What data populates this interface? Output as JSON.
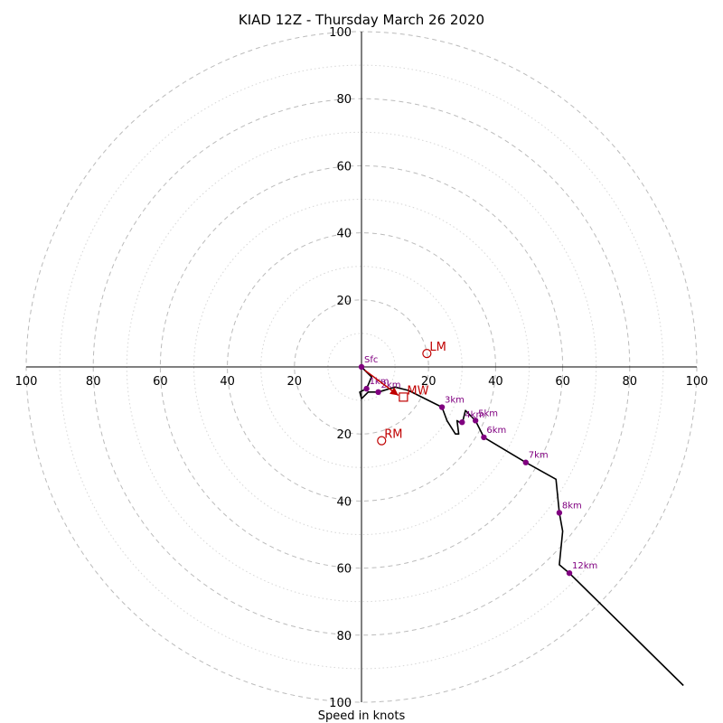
{
  "chart_data": {
    "type": "hodograph",
    "title": "KIAD 12Z - Thursday March 26 2020",
    "xlabel": "Speed in knots",
    "ring_interval": 10,
    "labeled_ring_interval": 20,
    "max_speed": 100,
    "tick_labels": {
      "positive": [
        "20",
        "40",
        "60",
        "80",
        "100"
      ],
      "negative": [
        "20",
        "40",
        "60",
        "80",
        "100"
      ]
    },
    "colors": {
      "ring_major": "#bbbbbb",
      "ring_minor": "#d6d6d6",
      "axis": "#000000",
      "trace": "#000000",
      "height_markers": "#800080",
      "storm_motion": "#c00000"
    },
    "trace": [
      {
        "u": 0,
        "v": 0
      },
      {
        "u": 2,
        "v": -2
      },
      {
        "u": 3,
        "v": -3
      },
      {
        "u": 1.5,
        "v": -6.5
      },
      {
        "u": -0.5,
        "v": -7.5
      },
      {
        "u": 0,
        "v": -9.5
      },
      {
        "u": 2,
        "v": -7.5
      },
      {
        "u": 5,
        "v": -7.5
      },
      {
        "u": 10,
        "v": -6
      },
      {
        "u": 14,
        "v": -7
      },
      {
        "u": 20,
        "v": -10
      },
      {
        "u": 24,
        "v": -12
      },
      {
        "u": 25.5,
        "v": -16
      },
      {
        "u": 28,
        "v": -20
      },
      {
        "u": 29,
        "v": -20
      },
      {
        "u": 28.5,
        "v": -16
      },
      {
        "u": 30,
        "v": -17
      },
      {
        "u": 31,
        "v": -13
      },
      {
        "u": 34,
        "v": -16
      },
      {
        "u": 36.5,
        "v": -21
      },
      {
        "u": 49,
        "v": -28.5
      },
      {
        "u": 58,
        "v": -33.5
      },
      {
        "u": 59,
        "v": -43.5
      },
      {
        "u": 60,
        "v": -49
      },
      {
        "u": 59,
        "v": -59
      },
      {
        "u": 62,
        "v": -61.5
      },
      {
        "u": 96,
        "v": -95
      }
    ],
    "height_markers": [
      {
        "label": "Sfc",
        "u": 0,
        "v": 0
      },
      {
        "label": "1km",
        "u": 1.5,
        "v": -6.5
      },
      {
        "label": "2km",
        "u": 5,
        "v": -7.5
      },
      {
        "label": "3km",
        "u": 24,
        "v": -12
      },
      {
        "label": "4km",
        "u": 30,
        "v": -16.5
      },
      {
        "label": "5km",
        "u": 34,
        "v": -16
      },
      {
        "label": "6km",
        "u": 36.5,
        "v": -21
      },
      {
        "label": "7km",
        "u": 49,
        "v": -28.5
      },
      {
        "label": "8km",
        "u": 59,
        "v": -43.5
      },
      {
        "label": "12km",
        "u": 62,
        "v": -61.5
      }
    ],
    "storm_motion": {
      "LM": {
        "label": "LM",
        "u": 19.5,
        "v": 4
      },
      "RM": {
        "label": "RM",
        "u": 6,
        "v": -22
      },
      "MW": {
        "label": "MW",
        "u": 12.5,
        "v": -9
      },
      "vector": {
        "u1": 1,
        "v1": -1,
        "u2": 11,
        "v2": -8.5
      }
    }
  }
}
